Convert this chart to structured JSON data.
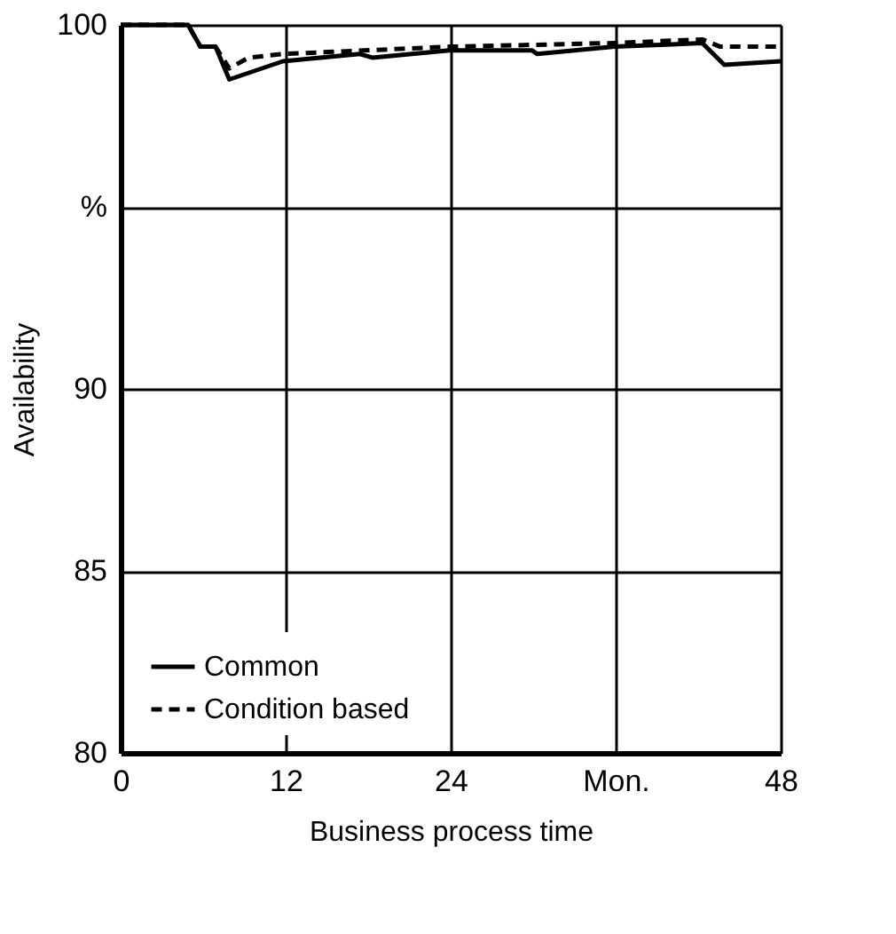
{
  "chart_data": {
    "type": "line",
    "xlabel": "Business process time",
    "ylabel": "Availability",
    "xlim": [
      0,
      48
    ],
    "xticks": [
      0,
      12,
      24,
      {
        "value": 36,
        "label": "Mon."
      },
      48
    ],
    "ylim": [
      80,
      100
    ],
    "yticks": [
      80,
      85,
      90,
      {
        "value": 95,
        "label": "%"
      },
      100
    ],
    "grid": true,
    "legend": "bottom left",
    "marker": "none",
    "series": [
      {
        "name": "Common",
        "color": "#000000",
        "line_style": "solid",
        "x": [
          0,
          4.9,
          5.8,
          6.9,
          7.9,
          11.8,
          17.4,
          18.3,
          23.9,
          29.9,
          30.3,
          35.9,
          42.3,
          43.9,
          48
        ],
        "values": [
          100,
          100,
          99.4,
          99.4,
          98.5,
          99.0,
          99.2,
          99.1,
          99.3,
          99.3,
          99.2,
          99.4,
          99.5,
          98.9,
          99.0
        ]
      },
      {
        "name": "Condition based",
        "color": "#000000",
        "line_style": "dashed",
        "x": [
          0,
          4.9,
          5.8,
          6.9,
          7.9,
          9.3,
          11.8,
          23.9,
          35.9,
          42.3,
          43.6,
          48
        ],
        "values": [
          100,
          100,
          99.4,
          99.4,
          98.8,
          99.1,
          99.2,
          99.4,
          99.5,
          99.6,
          99.4,
          99.4
        ]
      }
    ]
  }
}
